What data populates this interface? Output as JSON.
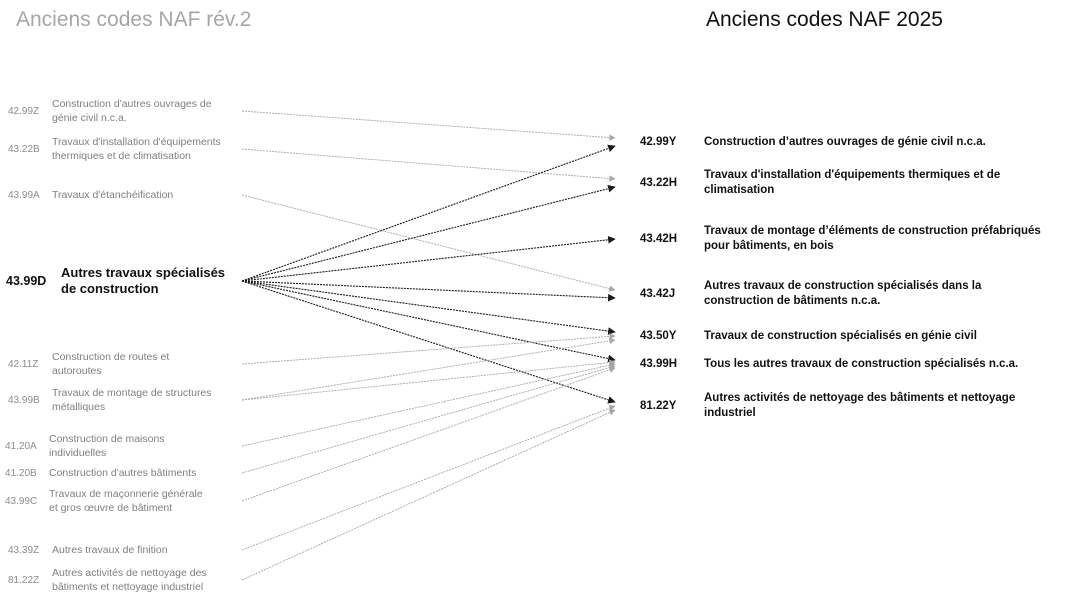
{
  "titles": {
    "left": "Anciens codes NAF rév.2",
    "right": "Anciens codes NAF 2025"
  },
  "left_nodes": [
    {
      "code": "42.99Z",
      "label_lines": [
        "Construction d'autres ouvrages de",
        "génie civil n.c.a."
      ]
    },
    {
      "code": "43.22B",
      "label_lines": [
        "Travaux d'installation d'équipements",
        "thermiques et de climatisation"
      ]
    },
    {
      "code": "43.99A",
      "label_lines": [
        "Travaux d'étanchéification"
      ]
    },
    {
      "code": "43.99D",
      "label_lines": [
        "Autres travaux spécialisés",
        "de construction"
      ],
      "highlighted": true
    },
    {
      "code": "42.11Z",
      "label_lines": [
        "Construction de routes et",
        "autoroutes"
      ]
    },
    {
      "code": "43.99B",
      "label_lines": [
        "Travaux de montage de structures",
        "métalliques"
      ]
    },
    {
      "code": "41.20A",
      "label_lines": [
        "Construction de maisons",
        "individuelles"
      ]
    },
    {
      "code": "41.20B",
      "label_lines": [
        "Construction d'autres bâtiments"
      ]
    },
    {
      "code": "43.99C",
      "label_lines": [
        "Travaux de maçonnerie générale",
        "et gros œuvre de bâtiment"
      ]
    },
    {
      "code": "43.39Z",
      "label_lines": [
        "Autres travaux de finition"
      ]
    },
    {
      "code": "81.22Z",
      "label_lines": [
        "Autres activités de nettoyage des",
        "bâtiments et nettoyage industriel"
      ]
    }
  ],
  "right_nodes": [
    {
      "code": "42.99Y",
      "label_lines": [
        "Construction d’autres ouvrages de génie civil n.c.a."
      ]
    },
    {
      "code": "43.22H",
      "label_lines": [
        "Travaux d'installation d'équipements thermiques et de",
        "climatisation"
      ]
    },
    {
      "code": "43.42H",
      "label_lines": [
        "Travaux de montage d’éléments de construction préfabriqués",
        "pour bâtiments, en bois"
      ]
    },
    {
      "code": "43.42J",
      "label_lines": [
        "Autres travaux de construction spécialisés dans la",
        "construction de bâtiments n.c.a."
      ]
    },
    {
      "code": "43.50Y",
      "label_lines": [
        "Travaux de construction spécialisés en génie civil"
      ]
    },
    {
      "code": "43.99H",
      "label_lines": [
        "Tous les autres travaux de construction spécialisés n.c.a."
      ]
    },
    {
      "code": "81.22Y",
      "label_lines": [
        "Autres activités de nettoyage des bâtiments et nettoyage",
        "industriel"
      ]
    }
  ],
  "mappings": [
    {
      "from": "42.99Z",
      "to": "42.99Y"
    },
    {
      "from": "43.22B",
      "to": "43.22H"
    },
    {
      "from": "43.99A",
      "to": "43.42J"
    },
    {
      "from": "43.99D",
      "to": "42.99Y"
    },
    {
      "from": "43.99D",
      "to": "43.22H"
    },
    {
      "from": "43.99D",
      "to": "43.42H"
    },
    {
      "from": "43.99D",
      "to": "43.42J"
    },
    {
      "from": "43.99D",
      "to": "43.50Y"
    },
    {
      "from": "43.99D",
      "to": "43.99H"
    },
    {
      "from": "43.99D",
      "to": "81.22Y"
    },
    {
      "from": "42.11Z",
      "to": "43.50Y"
    },
    {
      "from": "43.99B",
      "to": "43.50Y"
    },
    {
      "from": "43.99B",
      "to": "43.99H"
    },
    {
      "from": "41.20A",
      "to": "43.99H"
    },
    {
      "from": "41.20B",
      "to": "43.99H"
    },
    {
      "from": "43.99C",
      "to": "43.99H"
    },
    {
      "from": "43.39Z",
      "to": "81.22Y"
    },
    {
      "from": "81.22Z",
      "to": "81.22Y"
    }
  ],
  "colors": {
    "highlight_arrow": "#1a1a1a",
    "muted_arrow": "#a6a6a6",
    "muted_text": "#7f7f7f",
    "strong_text": "#111111",
    "left_title": "#a6a6a6"
  }
}
